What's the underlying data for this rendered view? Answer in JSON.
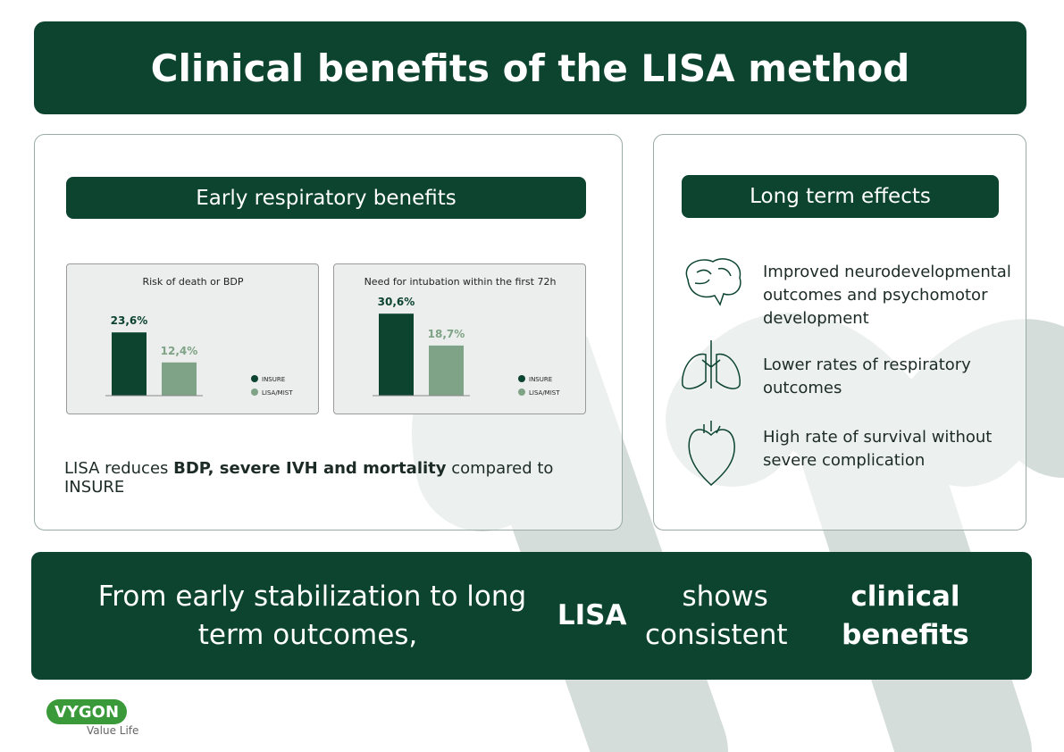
{
  "header": {
    "title": "Clinical benefits of the LISA method"
  },
  "left_panel": {
    "title": "Early respiratory benefits",
    "charts": [
      {
        "type": "bar",
        "title": "Risk of death or BDP",
        "series": [
          {
            "name": "INSURE",
            "color": "#0c4430",
            "values": [
              23.6
            ],
            "value_labels": [
              "23,6%"
            ]
          },
          {
            "name": "LISA/MIST",
            "color": "#7fa386",
            "values": [
              12.4
            ],
            "value_labels": [
              "12,4%"
            ]
          }
        ]
      },
      {
        "type": "bar",
        "title": "Need for intubation within the first 72h",
        "series": [
          {
            "name": "INSURE",
            "color": "#0c4430",
            "values": [
              30.6
            ],
            "value_labels": [
              "30,6%"
            ]
          },
          {
            "name": "LISA/MIST",
            "color": "#7fa386",
            "values": [
              18.7
            ],
            "value_labels": [
              "18,7%"
            ]
          }
        ]
      }
    ],
    "summary": [
      {
        "text": "LISA reduces "
      },
      {
        "text": "BDP, severe IVH and mortality",
        "bold": true
      },
      {
        "text": " compared to INSURE"
      }
    ]
  },
  "right_panel": {
    "title": "Long term effects",
    "items": [
      "Improved neurodevelopmental outcomes and psychomotor development",
      "Lower rates of respiratory outcomes",
      "High rate of survival without severe complication"
    ]
  },
  "footer": {
    "runs": [
      {
        "text": "From early stabilization to long term outcomes, "
      },
      {
        "text": "LISA",
        "bold": true
      },
      {
        "text": " shows consistent "
      },
      {
        "text": "clinical benefits",
        "bold": true
      }
    ]
  },
  "logo": {
    "brand": "VYGON",
    "tagline": "Value Life"
  }
}
